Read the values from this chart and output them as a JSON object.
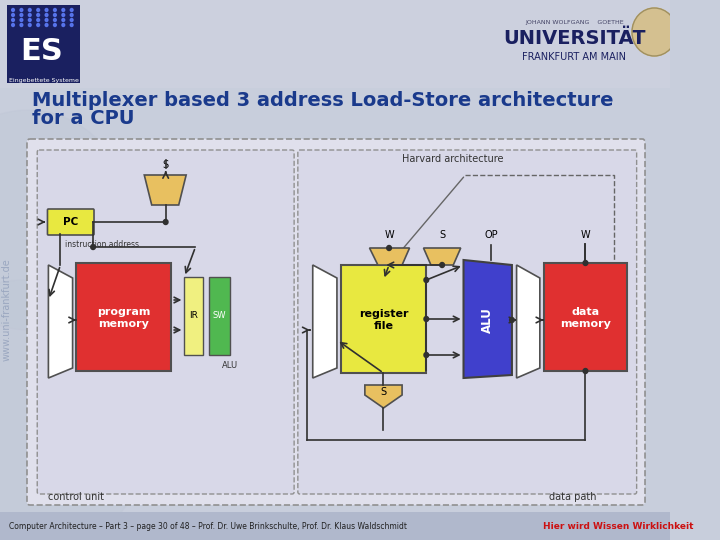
{
  "bg_color": "#c8cedc",
  "title_line1": "Multiplexer based 3 address Load-Store architecture",
  "title_line2": "for a CPU",
  "title_color": "#1a3a8c",
  "title_fontsize": 14,
  "footer_text": "Computer Architecture – Part 3 – page 30 of 48 – Prof. Dr. Uwe Brinkschulte, Prof. Dr. Klaus Waldschmidt",
  "footer_right": "Hier wird Wissen Wirklichkeit",
  "footer_bg": "#b0b8cc",
  "harvard_label": "Harvard architecture",
  "control_unit_label": "control unit",
  "data_path_label": "data path",
  "program_memory_color": "#e03030",
  "data_memory_color": "#e03030",
  "register_file_color": "#e8e840",
  "alu_color": "#4040cc",
  "ir_color": "#f0f080",
  "sw_color": "#50b850",
  "pc_color": "#e8e840",
  "mux_color": "#e8c060",
  "wire_color": "#303030",
  "diagram_bg": "#e0e0ec",
  "panel_bg": "#d8d8e8"
}
